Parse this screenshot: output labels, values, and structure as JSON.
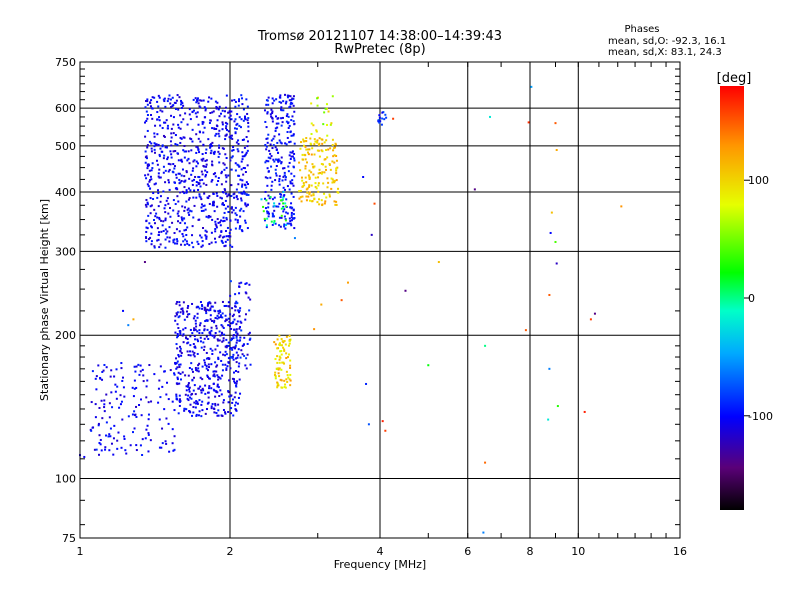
{
  "chart_data": {
    "type": "scatter",
    "title": "Tromsø 20121107 14:38:00–14:39:43",
    "subtitle": "RwPretec (8p)",
    "xlabel": "Frequency [MHz]",
    "ylabel": "Stationary phase Virtual Height [km]",
    "x_scale": "log",
    "y_scale": "log",
    "xlim": [
      1,
      16
    ],
    "ylim": [
      75,
      750
    ],
    "x_ticks": [
      "1",
      "2",
      "4",
      "6",
      "8",
      "10",
      "16"
    ],
    "x_tick_values": [
      1,
      2,
      4,
      6,
      8,
      10,
      16
    ],
    "y_ticks": [
      "75",
      "100",
      "200",
      "300",
      "400",
      "500",
      "600",
      "750"
    ],
    "y_tick_values": [
      75,
      100,
      200,
      300,
      400,
      500,
      600,
      750
    ],
    "grid": true,
    "colorbar": {
      "title": "[deg]",
      "ticks": [
        "100",
        "0",
        "-100"
      ],
      "tick_values": [
        100,
        0,
        -100
      ],
      "range": [
        -180,
        180
      ]
    },
    "stats": {
      "title": "Phases",
      "line_o": "mean, sd,O: -92.3, 16.1",
      "line_x": "mean, sd,X: 83.1, 24.3"
    },
    "clusters": [
      {
        "x_range": [
          1.35,
          2.05
        ],
        "y_range": [
          305,
          640
        ],
        "phase": [
          -120,
          -90
        ],
        "count": 700
      },
      {
        "x_range": [
          2.05,
          2.18
        ],
        "y_range": [
          330,
          640
        ],
        "phase": [
          -115,
          -85
        ],
        "count": 120
      },
      {
        "x_range": [
          2.35,
          2.7
        ],
        "y_range": [
          335,
          640
        ],
        "phase": [
          -115,
          -85
        ],
        "count": 260
      },
      {
        "x_range": [
          2.3,
          2.6
        ],
        "y_range": [
          340,
          400
        ],
        "phase": [
          -50,
          40
        ],
        "count": 25
      },
      {
        "x_range": [
          2.75,
          3.3
        ],
        "y_range": [
          375,
          520
        ],
        "phase": [
          85,
          130
        ],
        "count": 170
      },
      {
        "x_range": [
          2.9,
          3.25
        ],
        "y_range": [
          520,
          640
        ],
        "phase": [
          40,
          110
        ],
        "count": 20
      },
      {
        "x_range": [
          3.95,
          4.15
        ],
        "y_range": [
          545,
          590
        ],
        "phase": [
          -110,
          -70
        ],
        "count": 14
      },
      {
        "x_range": [
          1.05,
          1.55
        ],
        "y_range": [
          112,
          175
        ],
        "phase": [
          -120,
          -90
        ],
        "count": 160
      },
      {
        "x_range": [
          1.55,
          2.1
        ],
        "y_range": [
          135,
          235
        ],
        "phase": [
          -120,
          -90
        ],
        "count": 480
      },
      {
        "x_range": [
          2.0,
          2.2
        ],
        "y_range": [
          170,
          260
        ],
        "phase": [
          -120,
          -80
        ],
        "count": 70
      },
      {
        "x_range": [
          2.45,
          2.65
        ],
        "y_range": [
          155,
          200
        ],
        "phase": [
          70,
          130
        ],
        "count": 80
      }
    ],
    "points": [
      {
        "x": 1.0,
        "y": 112,
        "phase": -110
      },
      {
        "x": 1.02,
        "y": 111,
        "phase": -105
      },
      {
        "x": 1.08,
        "y": 115,
        "phase": -85
      },
      {
        "x": 1.1,
        "y": 118,
        "phase": -100
      },
      {
        "x": 1.22,
        "y": 225,
        "phase": -100
      },
      {
        "x": 1.25,
        "y": 210,
        "phase": -60
      },
      {
        "x": 1.28,
        "y": 216,
        "phase": 120
      },
      {
        "x": 1.35,
        "y": 285,
        "phase": -140
      },
      {
        "x": 2.7,
        "y": 320,
        "phase": -60
      },
      {
        "x": 2.95,
        "y": 206,
        "phase": 130
      },
      {
        "x": 3.05,
        "y": 232,
        "phase": 120
      },
      {
        "x": 3.35,
        "y": 237,
        "phase": 150
      },
      {
        "x": 3.45,
        "y": 258,
        "phase": 125
      },
      {
        "x": 3.9,
        "y": 378,
        "phase": 155
      },
      {
        "x": 3.85,
        "y": 325,
        "phase": -120
      },
      {
        "x": 3.7,
        "y": 430,
        "phase": -100
      },
      {
        "x": 3.75,
        "y": 158,
        "phase": -90
      },
      {
        "x": 3.8,
        "y": 130,
        "phase": -75
      },
      {
        "x": 4.05,
        "y": 132,
        "phase": 170
      },
      {
        "x": 4.1,
        "y": 126,
        "phase": 160
      },
      {
        "x": 4.25,
        "y": 570,
        "phase": 160
      },
      {
        "x": 4.5,
        "y": 248,
        "phase": -140
      },
      {
        "x": 5.0,
        "y": 173,
        "phase": 20
      },
      {
        "x": 5.25,
        "y": 285,
        "phase": 110
      },
      {
        "x": 6.2,
        "y": 405,
        "phase": -140
      },
      {
        "x": 6.5,
        "y": 190,
        "phase": 0
      },
      {
        "x": 6.5,
        "y": 108,
        "phase": 145
      },
      {
        "x": 6.65,
        "y": 575,
        "phase": -20
      },
      {
        "x": 6.45,
        "y": 77,
        "phase": -60
      },
      {
        "x": 7.85,
        "y": 205,
        "phase": 150
      },
      {
        "x": 8.05,
        "y": 665,
        "phase": -50
      },
      {
        "x": 7.95,
        "y": 560,
        "phase": 165
      },
      {
        "x": 8.75,
        "y": 243,
        "phase": 150
      },
      {
        "x": 8.85,
        "y": 362,
        "phase": 110
      },
      {
        "x": 8.8,
        "y": 328,
        "phase": -100
      },
      {
        "x": 8.75,
        "y": 170,
        "phase": -60
      },
      {
        "x": 8.7,
        "y": 133,
        "phase": -20
      },
      {
        "x": 9.0,
        "y": 314,
        "phase": 40
      },
      {
        "x": 9.05,
        "y": 283,
        "phase": -120
      },
      {
        "x": 9.05,
        "y": 490,
        "phase": 120
      },
      {
        "x": 9.0,
        "y": 558,
        "phase": 150
      },
      {
        "x": 9.1,
        "y": 142,
        "phase": 30
      },
      {
        "x": 10.3,
        "y": 138,
        "phase": 170
      },
      {
        "x": 10.6,
        "y": 216,
        "phase": 160
      },
      {
        "x": 10.8,
        "y": 222,
        "phase": -140
      },
      {
        "x": 12.2,
        "y": 373,
        "phase": 130
      }
    ]
  }
}
